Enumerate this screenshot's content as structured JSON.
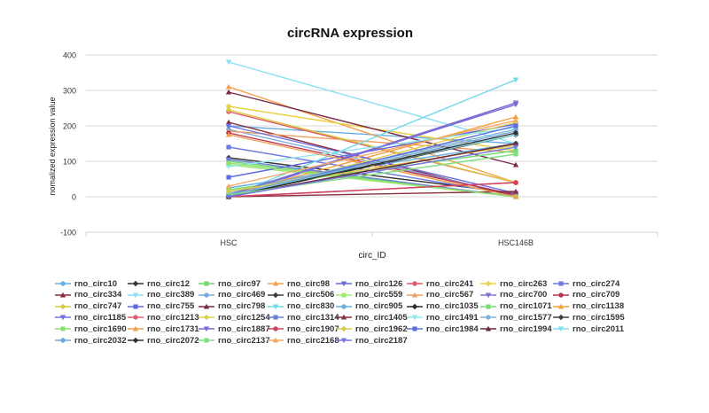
{
  "chart_data": {
    "type": "line",
    "title": "circRNA expression",
    "xlabel": "circ_ID",
    "ylabel": "nomalized expression value",
    "categories": [
      "HSC",
      "HSC146B"
    ],
    "ylim": [
      -100,
      400
    ],
    "yticks": [
      -100,
      0,
      100,
      200,
      300,
      400
    ],
    "grid": true,
    "legend_position": "bottom",
    "series": [
      {
        "name": "rno_circ10",
        "color": "#6aaee0",
        "marker": "circle",
        "values": [
          200,
          150
        ]
      },
      {
        "name": "rno_circ12",
        "color": "#333333",
        "marker": "diamond",
        "values": [
          110,
          10
        ]
      },
      {
        "name": "rno_circ97",
        "color": "#6fd86f",
        "marker": "square",
        "values": [
          100,
          0
        ]
      },
      {
        "name": "rno_circ98",
        "color": "#f5a04a",
        "marker": "tri-up",
        "values": [
          310,
          40
        ]
      },
      {
        "name": "rno_circ126",
        "color": "#6a6ad8",
        "marker": "tri-down",
        "values": [
          0,
          265
        ]
      },
      {
        "name": "rno_circ241",
        "color": "#e05a6a",
        "marker": "circle",
        "values": [
          240,
          40
        ]
      },
      {
        "name": "rno_circ263",
        "color": "#e8d040",
        "marker": "diamond",
        "values": [
          255,
          130
        ]
      },
      {
        "name": "rno_circ274",
        "color": "#6a7ae0",
        "marker": "square",
        "values": [
          140,
          5
        ]
      },
      {
        "name": "rno_circ334",
        "color": "#8a2a3a",
        "marker": "tri-up",
        "values": [
          210,
          0
        ]
      },
      {
        "name": "rno_circ389",
        "color": "#8ae0f0",
        "marker": "tri-down",
        "values": [
          380,
          150
        ]
      },
      {
        "name": "rno_circ469",
        "color": "#7aa8e0",
        "marker": "circle",
        "values": [
          190,
          5
        ]
      },
      {
        "name": "rno_circ506",
        "color": "#3a3a3a",
        "marker": "diamond",
        "values": [
          0,
          175
        ]
      },
      {
        "name": "rno_circ559",
        "color": "#a0e870",
        "marker": "square",
        "values": [
          90,
          0
        ]
      },
      {
        "name": "rno_circ567",
        "color": "#f0a060",
        "marker": "tri-up",
        "values": [
          185,
          125
        ]
      },
      {
        "name": "rno_circ700",
        "color": "#8070d0",
        "marker": "tri-down",
        "values": [
          5,
          265
        ]
      },
      {
        "name": "rno_circ709",
        "color": "#c03050",
        "marker": "circle",
        "values": [
          180,
          5
        ]
      },
      {
        "name": "rno_circ747",
        "color": "#d8c840",
        "marker": "diamond",
        "values": [
          245,
          40
        ]
      },
      {
        "name": "rno_circ755",
        "color": "#5a6ae0",
        "marker": "square",
        "values": [
          55,
          205
        ]
      },
      {
        "name": "rno_circ798",
        "color": "#7a2a4a",
        "marker": "tri-up",
        "values": [
          295,
          90
        ]
      },
      {
        "name": "rno_circ830",
        "color": "#70d8e8",
        "marker": "tri-down",
        "values": [
          0,
          330
        ]
      },
      {
        "name": "rno_circ905",
        "color": "#6ab0e0",
        "marker": "circle",
        "values": [
          25,
          150
        ]
      },
      {
        "name": "rno_circ1035",
        "color": "#2a2a2a",
        "marker": "diamond",
        "values": [
          0,
          175
        ]
      },
      {
        "name": "rno_circ1071",
        "color": "#70e070",
        "marker": "square",
        "values": [
          20,
          130
        ]
      },
      {
        "name": "rno_circ1138",
        "color": "#f5a040",
        "marker": "tri-up",
        "values": [
          5,
          225
        ]
      },
      {
        "name": "rno_circ1185",
        "color": "#7070e0",
        "marker": "tri-down",
        "values": [
          200,
          10
        ]
      },
      {
        "name": "rno_circ1213",
        "color": "#e06070",
        "marker": "circle",
        "values": [
          0,
          40
        ]
      },
      {
        "name": "rno_circ1254",
        "color": "#e0d050",
        "marker": "diamond",
        "values": [
          0,
          210
        ]
      },
      {
        "name": "rno_circ1314",
        "color": "#6a80d8",
        "marker": "square",
        "values": [
          105,
          0
        ]
      },
      {
        "name": "rno_circ1405",
        "color": "#8a3040",
        "marker": "tri-up",
        "values": [
          0,
          15
        ]
      },
      {
        "name": "rno_circ1491",
        "color": "#90e8f0",
        "marker": "tri-down",
        "values": [
          85,
          195
        ]
      },
      {
        "name": "rno_circ1577",
        "color": "#80b0e0",
        "marker": "circle",
        "values": [
          10,
          190
        ]
      },
      {
        "name": "rno_circ1595",
        "color": "#404040",
        "marker": "diamond",
        "values": [
          0,
          150
        ]
      },
      {
        "name": "rno_circ1690",
        "color": "#90e070",
        "marker": "square",
        "values": [
          95,
          0
        ]
      },
      {
        "name": "rno_circ1731",
        "color": "#f0a050",
        "marker": "tri-up",
        "values": [
          175,
          0
        ]
      },
      {
        "name": "rno_circ1887",
        "color": "#7a6ad8",
        "marker": "tri-down",
        "values": [
          5,
          260
        ]
      },
      {
        "name": "rno_circ1907",
        "color": "#d04060",
        "marker": "circle",
        "values": [
          0,
          40
        ]
      },
      {
        "name": "rno_circ1962",
        "color": "#d8c850",
        "marker": "diamond",
        "values": [
          15,
          145
        ]
      },
      {
        "name": "rno_circ1984",
        "color": "#5a70d8",
        "marker": "square",
        "values": [
          0,
          200
        ]
      },
      {
        "name": "rno_circ1994",
        "color": "#6a2a3a",
        "marker": "tri-up",
        "values": [
          0,
          150
        ]
      },
      {
        "name": "rno_circ2011",
        "color": "#80e0e8",
        "marker": "tri-down",
        "values": [
          5,
          175
        ]
      },
      {
        "name": "rno_circ2032",
        "color": "#70a8d8",
        "marker": "circle",
        "values": [
          5,
          185
        ]
      },
      {
        "name": "rno_circ2072",
        "color": "#303030",
        "marker": "diamond",
        "values": [
          0,
          180
        ]
      },
      {
        "name": "rno_circ2137",
        "color": "#80e080",
        "marker": "square",
        "values": [
          5,
          120
        ]
      },
      {
        "name": "rno_circ2168",
        "color": "#f5a860",
        "marker": "tri-up",
        "values": [
          30,
          215
        ]
      },
      {
        "name": "rno_circ2187",
        "color": "#7878e0",
        "marker": "tri-down",
        "values": [
          0,
          140
        ]
      }
    ]
  }
}
